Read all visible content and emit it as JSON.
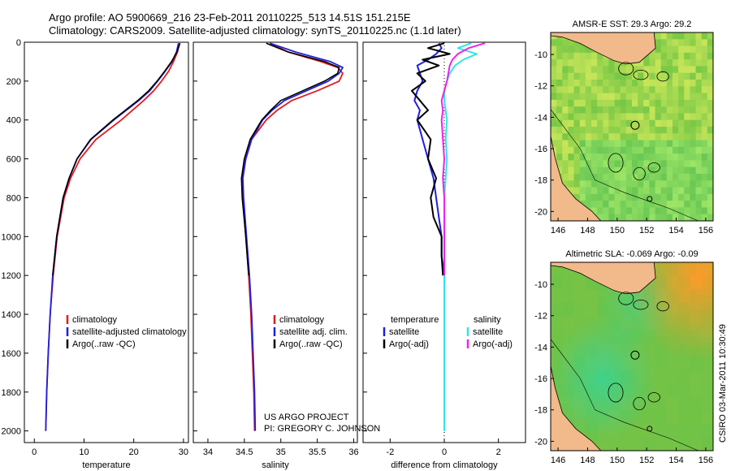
{
  "header": {
    "line1": "Argo profile: AO 5900669_216 23-Feb-2011 20110225_513 14.51S 151.215E",
    "line2": "Climatology: CARS2009. Satellite-adjusted climatology: synTS_20110225.nc (1.1d later)"
  },
  "credits": {
    "project": "US ARGO PROJECT",
    "pi": "PI: GREGORY C. JOHNSON",
    "stamp": "CSIRO 03-Mar-2011 10:30:49"
  },
  "colors": {
    "climatology": "#e41a1c",
    "satellite": "#1f1fe0",
    "argo": "#000000",
    "sal_satellite": "#33e5e5",
    "sal_argo": "#ee22ee",
    "land": "#f2b98a"
  },
  "chart_data": [
    {
      "type": "line",
      "name": "temperature-profile",
      "xlabel": "temperature",
      "ylabel": "",
      "xlim": [
        -2,
        31
      ],
      "ylim": [
        2060,
        0
      ],
      "xticks": [
        0,
        10,
        20,
        30
      ],
      "yticks": [
        0,
        200,
        400,
        600,
        800,
        1000,
        1200,
        1400,
        1600,
        1800,
        2000
      ],
      "depth": [
        5,
        50,
        100,
        150,
        200,
        250,
        300,
        400,
        500,
        600,
        700,
        800,
        1000,
        1200,
        1400,
        1600,
        1800,
        2000
      ],
      "series": [
        {
          "name": "climatology",
          "values": [
            29.2,
            28.8,
            28.0,
            27.0,
            25.6,
            24.0,
            22.0,
            17.5,
            12.4,
            9.2,
            7.3,
            6.0,
            4.6,
            3.8,
            3.2,
            2.8,
            2.5,
            2.3
          ]
        },
        {
          "name": "satellite-adjusted climatology",
          "values": [
            29.0,
            28.6,
            27.7,
            26.3,
            24.8,
            23.2,
            21.0,
            16.0,
            11.4,
            8.6,
            7.0,
            5.8,
            4.5,
            3.7,
            3.2,
            2.8,
            2.5,
            2.3
          ]
        },
        {
          "name": "Argo(..raw -QC)",
          "values": [
            29.3,
            28.7,
            27.6,
            26.2,
            24.7,
            23.0,
            20.8,
            15.8,
            11.3,
            8.6,
            7.0,
            5.8,
            4.5,
            3.7
          ]
        }
      ],
      "legend": [
        "climatology",
        "satellite-adjusted climatology",
        "Argo(..raw -QC)"
      ],
      "legend_position": "lower-middle"
    },
    {
      "type": "line",
      "name": "salinity-profile",
      "xlabel": "salinity",
      "xlim": [
        33.8,
        36.05
      ],
      "ylim": [
        2060,
        0
      ],
      "xticks": [
        34,
        34.5,
        35,
        35.5,
        36
      ],
      "xticklabels": [
        "34",
        "34.5",
        "35",
        "35.5",
        "36"
      ],
      "depth": [
        5,
        50,
        100,
        130,
        160,
        200,
        250,
        300,
        350,
        400,
        500,
        600,
        700,
        800,
        1000,
        1200,
        1400,
        1600,
        1800,
        2000
      ],
      "series": [
        {
          "name": "climatology",
          "values": [
            34.85,
            35.1,
            35.55,
            35.78,
            35.85,
            35.8,
            35.5,
            35.15,
            34.95,
            34.8,
            34.6,
            34.52,
            34.47,
            34.48,
            34.52,
            34.56,
            34.59,
            34.61,
            34.63,
            34.64
          ]
        },
        {
          "name": "satellite adj. clim.",
          "values": [
            34.85,
            35.2,
            35.68,
            35.85,
            35.8,
            35.65,
            35.35,
            35.05,
            34.88,
            34.75,
            34.6,
            34.52,
            34.48,
            34.49,
            34.53,
            34.57,
            34.6,
            34.62,
            34.64,
            34.65
          ]
        },
        {
          "name": "Argo(..raw -QC)",
          "values": [
            34.8,
            35.1,
            35.6,
            35.8,
            35.78,
            35.6,
            35.3,
            35.0,
            34.86,
            34.74,
            34.58,
            34.5,
            34.46,
            34.47,
            34.52,
            34.56
          ]
        }
      ],
      "legend": [
        "climatology",
        "satellite adj. clim.",
        "Argo(..raw -QC)"
      ],
      "legend_position": "lower-right"
    },
    {
      "type": "line",
      "name": "difference-from-climatology",
      "xlabel": "difference from climatology",
      "xlim": [
        -3,
        3
      ],
      "ylim": [
        2060,
        0
      ],
      "xticks": [
        -2,
        0,
        2
      ],
      "depth": [
        5,
        30,
        60,
        90,
        120,
        160,
        200,
        250,
        300,
        350,
        400,
        500,
        600,
        700,
        800,
        900,
        1000,
        1100,
        1200,
        1400,
        1600,
        1800,
        2000
      ],
      "series": [
        {
          "name": "temperature satellite",
          "values": [
            -0.2,
            -0.1,
            -0.3,
            -0.6,
            -1.0,
            -0.9,
            -0.8,
            -1.0,
            -1.1,
            -0.9,
            -1.0,
            -0.8,
            -0.6,
            -0.4,
            -0.3,
            -0.2,
            -0.1,
            -0.1,
            0.0,
            0.0,
            0.0,
            0.0,
            0.0
          ]
        },
        {
          "name": "temperature Argo(-adj)",
          "values": [
            0.0,
            -0.6,
            0.2,
            -0.8,
            -0.2,
            -1.0,
            -0.7,
            -1.2,
            -0.9,
            -0.6,
            -1.0,
            -0.5,
            -0.6,
            -0.3,
            -0.5,
            -0.4,
            -0.1,
            -0.1,
            -0.05
          ]
        },
        {
          "name": "salinity satellite",
          "values": [
            1.0,
            0.5,
            1.2,
            0.7,
            0.4,
            0.2,
            0.1,
            0.0,
            0.0,
            0.05,
            0.1,
            0.05,
            0.1,
            0.05,
            0.0,
            0.0,
            0.0,
            0.0,
            0.0,
            0.0,
            0.0,
            0.0,
            0.0
          ]
        },
        {
          "name": "salinity Argo(-adj)",
          "values": [
            1.5,
            0.9,
            0.5,
            0.3,
            0.2,
            0.15,
            0.1,
            0.0,
            -0.1,
            -0.05,
            -0.1,
            -0.05,
            0.0,
            -0.05,
            0.0,
            0.0,
            0.0,
            0.0,
            0.0
          ]
        }
      ],
      "legend_left_title": "temperature",
      "legend_right_title": "salinity",
      "legend_left": [
        "satellite",
        "Argo(-adj)"
      ],
      "legend_right": [
        "satellite",
        "Argo(-adj)"
      ]
    },
    {
      "type": "heatmap",
      "name": "sst-map",
      "title": "AMSR-E SST: 29.3  Argo: 29.2",
      "xticks": [
        146,
        148,
        150,
        152,
        154,
        156
      ],
      "yticks": [
        -10,
        -12,
        -14,
        -16,
        -18,
        -20
      ],
      "xlim": [
        145.5,
        156.5
      ],
      "ylim": [
        -20.6,
        -8.6
      ],
      "argo_position": [
        151.215,
        -14.51
      ]
    },
    {
      "type": "heatmap",
      "name": "sla-map",
      "title": "Altimetric SLA: -0.069  Argo: -0.09",
      "xticks": [
        146,
        148,
        150,
        152,
        154,
        156
      ],
      "yticks": [
        -10,
        -12,
        -14,
        -16,
        -18,
        -20
      ],
      "xlim": [
        145.5,
        156.5
      ],
      "ylim": [
        -20.6,
        -8.6
      ],
      "argo_position": [
        151.215,
        -14.51
      ]
    }
  ]
}
